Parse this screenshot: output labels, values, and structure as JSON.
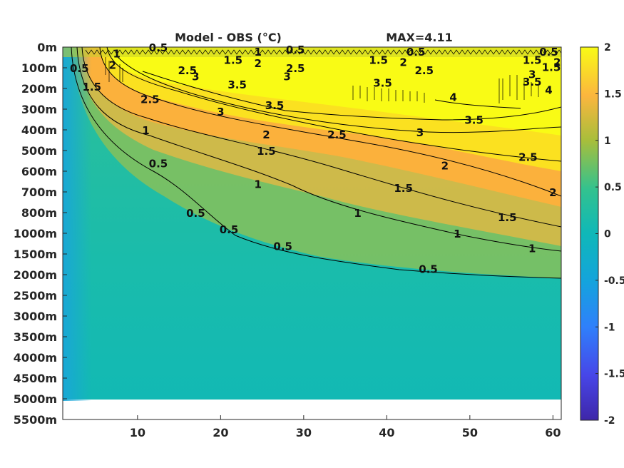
{
  "chart_data": {
    "type": "heatmap",
    "title": "Model - OBS (°C)",
    "annotation": "MAX=4.11",
    "x_ticks": [
      10,
      20,
      30,
      40,
      50,
      60
    ],
    "xlim": [
      1,
      61
    ],
    "y_tick_labels": [
      "0m",
      "100m",
      "200m",
      "300m",
      "400m",
      "500m",
      "600m",
      "700m",
      "800m",
      "1000m",
      "1500m",
      "2000m",
      "2500m",
      "3000m",
      "3500m",
      "4000m",
      "4500m",
      "5000m",
      "5500m"
    ],
    "colorbar": {
      "range": [
        -2,
        2
      ],
      "ticks": [
        "2",
        "1.5",
        "1",
        "0.5",
        "0",
        "-0.5",
        "-1",
        "-1.5",
        "-2"
      ],
      "colormap": "parula"
    },
    "contour_levels": [
      0.5,
      1,
      1.5,
      2,
      2.5,
      3,
      3.5,
      4
    ],
    "contour_labels": [
      {
        "text": "0.5",
        "x": 3,
        "y": 1.0
      },
      {
        "text": "1",
        "x": 7.5,
        "y": 0.3
      },
      {
        "text": "2",
        "x": 7,
        "y": 0.85
      },
      {
        "text": "1.5",
        "x": 4.5,
        "y": 1.9
      },
      {
        "text": "0.5",
        "x": 12.5,
        "y": 0.0
      },
      {
        "text": "2.5",
        "x": 16,
        "y": 1.1
      },
      {
        "text": "3",
        "x": 17,
        "y": 1.4
      },
      {
        "text": "1.5",
        "x": 21.5,
        "y": 0.6
      },
      {
        "text": "1",
        "x": 24.5,
        "y": 0.2
      },
      {
        "text": "2",
        "x": 24.5,
        "y": 0.75
      },
      {
        "text": "0.5",
        "x": 29,
        "y": 0.1
      },
      {
        "text": "2.5",
        "x": 29,
        "y": 1.0
      },
      {
        "text": "3",
        "x": 28,
        "y": 1.4
      },
      {
        "text": "3.5",
        "x": 22,
        "y": 1.8
      },
      {
        "text": "2.5",
        "x": 11.5,
        "y": 2.5
      },
      {
        "text": "3",
        "x": 20,
        "y": 3.1
      },
      {
        "text": "3.5",
        "x": 26.5,
        "y": 2.8
      },
      {
        "text": "1",
        "x": 11,
        "y": 4.0
      },
      {
        "text": "2",
        "x": 25.5,
        "y": 4.2
      },
      {
        "text": "1.5",
        "x": 25.5,
        "y": 5.0
      },
      {
        "text": "0.5",
        "x": 12.5,
        "y": 5.6
      },
      {
        "text": "1",
        "x": 24.5,
        "y": 6.6
      },
      {
        "text": "2.5",
        "x": 34,
        "y": 4.2
      },
      {
        "text": "3",
        "x": 44,
        "y": 4.1
      },
      {
        "text": "3.5",
        "x": 50.5,
        "y": 3.5
      },
      {
        "text": "2",
        "x": 47,
        "y": 5.7
      },
      {
        "text": "2.5",
        "x": 57,
        "y": 5.3
      },
      {
        "text": "1.5",
        "x": 42,
        "y": 6.8
      },
      {
        "text": "2",
        "x": 60,
        "y": 7.0
      },
      {
        "text": "1.5",
        "x": 54.5,
        "y": 8.2
      },
      {
        "text": "1",
        "x": 36.5,
        "y": 8.0
      },
      {
        "text": "1",
        "x": 48.5,
        "y": 9.0
      },
      {
        "text": "1",
        "x": 57.5,
        "y": 9.7
      },
      {
        "text": "0.5",
        "x": 17,
        "y": 8.0
      },
      {
        "text": "0.5",
        "x": 21,
        "y": 8.8
      },
      {
        "text": "0.5",
        "x": 27.5,
        "y": 9.6
      },
      {
        "text": "0.5",
        "x": 45,
        "y": 10.7
      },
      {
        "text": "1.5",
        "x": 39,
        "y": 0.6
      },
      {
        "text": "2",
        "x": 42,
        "y": 0.7
      },
      {
        "text": "0.5",
        "x": 43.5,
        "y": 0.2
      },
      {
        "text": "2.5",
        "x": 44.5,
        "y": 1.1
      },
      {
        "text": "3.5",
        "x": 39.5,
        "y": 1.7
      },
      {
        "text": "4",
        "x": 48,
        "y": 2.4
      },
      {
        "text": "1.5",
        "x": 57.5,
        "y": 0.6
      },
      {
        "text": "2",
        "x": 60.5,
        "y": 0.7
      },
      {
        "text": "0.5",
        "x": 59.5,
        "y": 0.2
      },
      {
        "text": "3",
        "x": 57.5,
        "y": 1.3
      },
      {
        "text": "1.5",
        "x": 59.8,
        "y": 0.95
      },
      {
        "text": "3.5",
        "x": 57.5,
        "y": 1.65
      },
      {
        "text": "4",
        "x": 59.5,
        "y": 2.05
      }
    ]
  }
}
